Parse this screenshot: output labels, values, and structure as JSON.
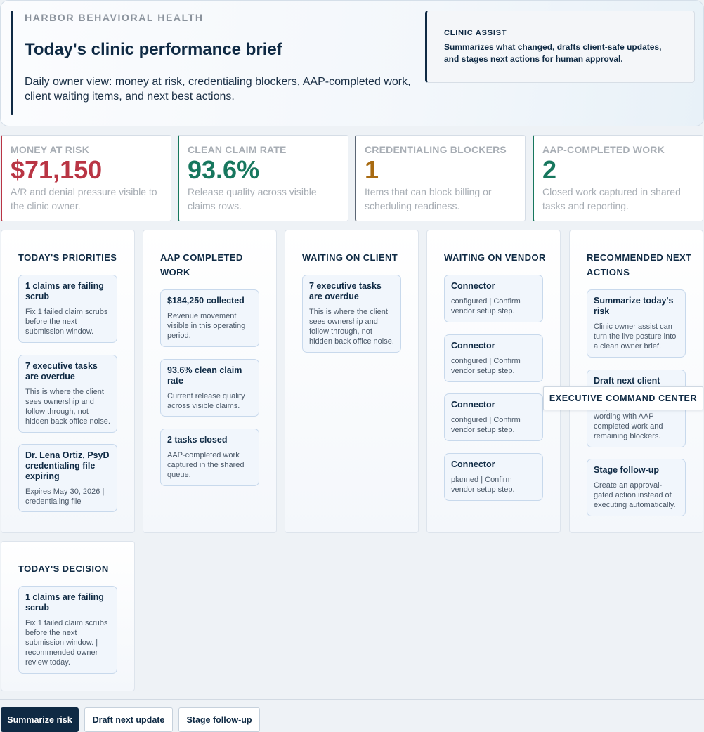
{
  "hero": {
    "eyebrow": "HARBOR BEHAVIORAL HEALTH",
    "title": "Today's clinic performance brief",
    "subtitle": "Daily owner view: money at risk, credentialing blockers, AAP-completed work, client waiting items, and next best actions."
  },
  "assist": {
    "title": "CLINIC ASSIST",
    "text": "Summarizes what changed, drafts client-safe updates, and stages next actions for human approval."
  },
  "kpis": [
    {
      "label": "MONEY AT RISK",
      "value": "$71,150",
      "desc": "A/R and denial pressure visible to the clinic owner.",
      "color": "#b93544"
    },
    {
      "label": "CLEAN CLAIM RATE",
      "value": "93.6%",
      "desc": "Release quality across visible claims rows.",
      "color": "#17775e"
    },
    {
      "label": "CREDENTIALING BLOCKERS",
      "value": "1",
      "desc": "Items that can block billing or scheduling readiness.",
      "color": "#a86a11"
    },
    {
      "label": "AAP-COMPLETED WORK",
      "value": "2",
      "desc": "Closed work captured in shared tasks and reporting.",
      "color": "#17775e"
    }
  ],
  "columns": {
    "priorities": {
      "title": "TODAY'S PRIORITIES",
      "cards": [
        {
          "title": "1 claims are failing scrub",
          "body": "Fix 1 failed claim scrubs before the next submission window."
        },
        {
          "title": "7 executive tasks are overdue",
          "body": "This is where the client sees ownership and follow through, not hidden back office noise."
        },
        {
          "title": "Dr. Lena Ortiz, PsyD credentialing file expiring",
          "body": "Expires May 30, 2026 | credentialing file"
        }
      ]
    },
    "completed": {
      "title": "AAP COMPLETED WORK",
      "cards": [
        {
          "title": "$184,250 collected",
          "body": "Revenue movement visible in this operating period."
        },
        {
          "title": "93.6% clean claim rate",
          "body": "Current release quality across visible claims."
        },
        {
          "title": "2 tasks closed",
          "body": "AAP-completed work captured in the shared queue."
        }
      ]
    },
    "client": {
      "title": "WAITING ON CLIENT",
      "cards": [
        {
          "title": "7 executive tasks are overdue",
          "body": "This is where the client sees ownership and follow through, not hidden back office noise."
        }
      ]
    },
    "vendor": {
      "title": "WAITING ON VENDOR",
      "cards": [
        {
          "title": "Connector",
          "body": "configured | Confirm vendor setup step."
        },
        {
          "title": "Connector",
          "body": "configured | Confirm vendor setup step."
        },
        {
          "title": "Connector",
          "body": "configured | Confirm vendor setup step."
        },
        {
          "title": "Connector",
          "body": "planned | Confirm vendor setup step."
        }
      ]
    },
    "next": {
      "title": "RECOMMENDED NEXT ACTIONS",
      "cards": [
        {
          "title": "Summarize today's risk",
          "body": "Clinic owner assist can turn the live posture into a clean owner brief."
        },
        {
          "title": "Draft next client update",
          "body": "Prepare client-safe wording with AAP completed work and remaining blockers."
        },
        {
          "title": "Stage follow-up",
          "body": "Create an approval-gated action instead of executing automatically."
        }
      ]
    },
    "decision": {
      "title": "TODAY'S DECISION",
      "cards": [
        {
          "title": "1 claims are failing scrub",
          "body": "Fix 1 failed claim scrubs before the next submission window. | recommended owner review today."
        }
      ]
    }
  },
  "tooltip": "EXECUTIVE COMMAND CENTER",
  "actions": {
    "summarize": "Summarize risk",
    "draft": "Draft next update",
    "stage": "Stage follow-up"
  }
}
